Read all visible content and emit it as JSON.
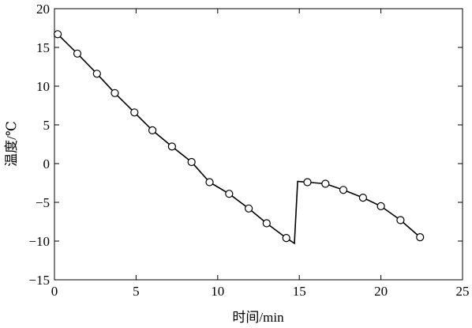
{
  "chart_data": {
    "type": "line",
    "title": "",
    "xlabel": "时间/min",
    "ylabel": "温度/℃",
    "xlim": [
      0,
      25
    ],
    "ylim": [
      -15,
      20
    ],
    "x_ticks": [
      0,
      5,
      10,
      15,
      20,
      25
    ],
    "y_ticks": [
      -15,
      -10,
      -5,
      0,
      5,
      10,
      15,
      20
    ],
    "x_tick_labels": [
      "0",
      "5",
      "10",
      "15",
      "20",
      "25"
    ],
    "y_tick_labels": [
      "−15",
      "−10",
      "−5",
      "0",
      "5",
      "10",
      "15",
      "20"
    ],
    "grid": false,
    "legend": "none",
    "line_color": "#000000",
    "series": [
      {
        "x": [
          0.2,
          1.4,
          2.6,
          3.7,
          4.9,
          6.0,
          7.2,
          8.4,
          9.5,
          10.7,
          11.9,
          13.0,
          14.2,
          14.7,
          14.9,
          15.5,
          16.6,
          17.7,
          18.9,
          20.0,
          21.2,
          22.4
        ],
        "y": [
          16.7,
          14.2,
          11.6,
          9.1,
          6.6,
          4.3,
          2.2,
          0.2,
          -2.4,
          -3.9,
          -5.8,
          -7.7,
          -9.6,
          -10.3,
          -2.3,
          -2.4,
          -2.6,
          -3.4,
          -4.4,
          -5.5,
          -7.3,
          -9.5
        ],
        "markers": [
          true,
          true,
          true,
          true,
          true,
          true,
          true,
          true,
          true,
          true,
          true,
          true,
          true,
          false,
          false,
          true,
          true,
          true,
          true,
          true,
          true,
          true
        ]
      }
    ]
  }
}
